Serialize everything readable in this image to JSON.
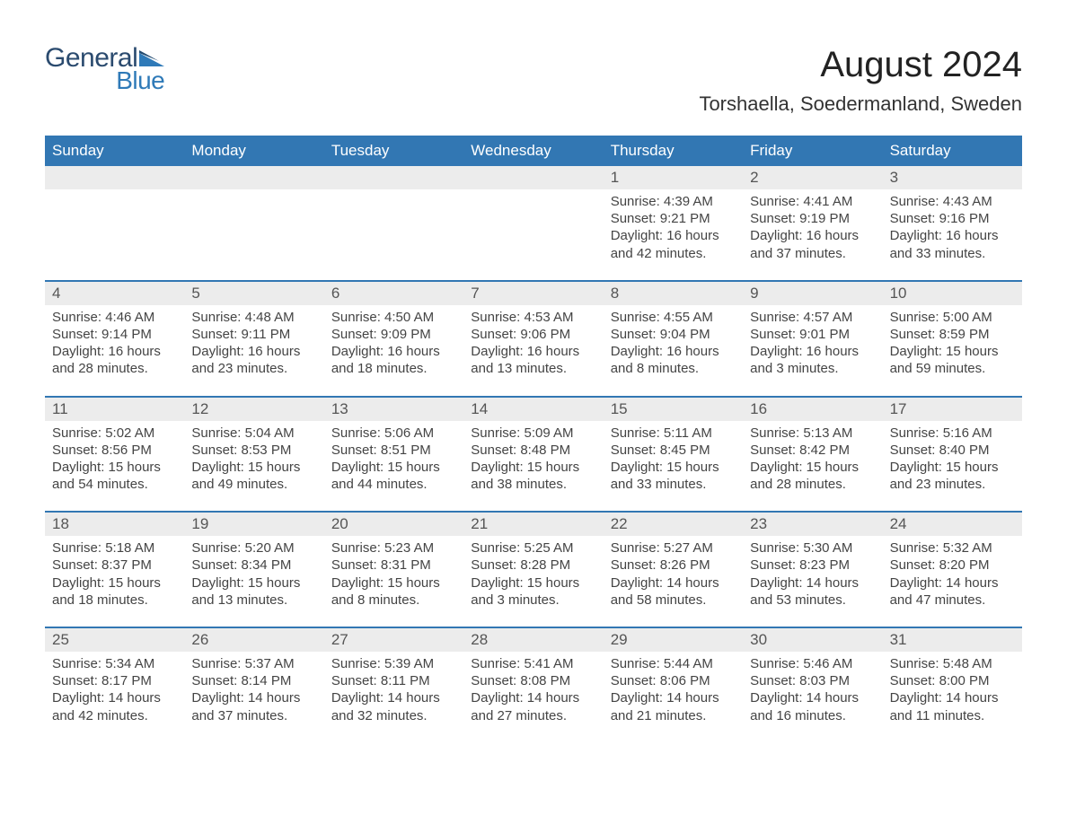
{
  "logo": {
    "text1": "General",
    "text2": "Blue"
  },
  "title": "August 2024",
  "subtitle": "Torshaella, Soedermanland, Sweden",
  "colors": {
    "header_blue": "#3277b3",
    "logo_dark": "#2b4b6f",
    "logo_blue": "#2f7ab8",
    "daynum_bg": "#ececec",
    "background": "#ffffff"
  },
  "weekdays": [
    "Sunday",
    "Monday",
    "Tuesday",
    "Wednesday",
    "Thursday",
    "Friday",
    "Saturday"
  ],
  "weeks": [
    [
      null,
      null,
      null,
      null,
      {
        "n": "1",
        "sr": "Sunrise: 4:39 AM",
        "ss": "Sunset: 9:21 PM",
        "d1": "Daylight: 16 hours",
        "d2": "and 42 minutes."
      },
      {
        "n": "2",
        "sr": "Sunrise: 4:41 AM",
        "ss": "Sunset: 9:19 PM",
        "d1": "Daylight: 16 hours",
        "d2": "and 37 minutes."
      },
      {
        "n": "3",
        "sr": "Sunrise: 4:43 AM",
        "ss": "Sunset: 9:16 PM",
        "d1": "Daylight: 16 hours",
        "d2": "and 33 minutes."
      }
    ],
    [
      {
        "n": "4",
        "sr": "Sunrise: 4:46 AM",
        "ss": "Sunset: 9:14 PM",
        "d1": "Daylight: 16 hours",
        "d2": "and 28 minutes."
      },
      {
        "n": "5",
        "sr": "Sunrise: 4:48 AM",
        "ss": "Sunset: 9:11 PM",
        "d1": "Daylight: 16 hours",
        "d2": "and 23 minutes."
      },
      {
        "n": "6",
        "sr": "Sunrise: 4:50 AM",
        "ss": "Sunset: 9:09 PM",
        "d1": "Daylight: 16 hours",
        "d2": "and 18 minutes."
      },
      {
        "n": "7",
        "sr": "Sunrise: 4:53 AM",
        "ss": "Sunset: 9:06 PM",
        "d1": "Daylight: 16 hours",
        "d2": "and 13 minutes."
      },
      {
        "n": "8",
        "sr": "Sunrise: 4:55 AM",
        "ss": "Sunset: 9:04 PM",
        "d1": "Daylight: 16 hours",
        "d2": "and 8 minutes."
      },
      {
        "n": "9",
        "sr": "Sunrise: 4:57 AM",
        "ss": "Sunset: 9:01 PM",
        "d1": "Daylight: 16 hours",
        "d2": "and 3 minutes."
      },
      {
        "n": "10",
        "sr": "Sunrise: 5:00 AM",
        "ss": "Sunset: 8:59 PM",
        "d1": "Daylight: 15 hours",
        "d2": "and 59 minutes."
      }
    ],
    [
      {
        "n": "11",
        "sr": "Sunrise: 5:02 AM",
        "ss": "Sunset: 8:56 PM",
        "d1": "Daylight: 15 hours",
        "d2": "and 54 minutes."
      },
      {
        "n": "12",
        "sr": "Sunrise: 5:04 AM",
        "ss": "Sunset: 8:53 PM",
        "d1": "Daylight: 15 hours",
        "d2": "and 49 minutes."
      },
      {
        "n": "13",
        "sr": "Sunrise: 5:06 AM",
        "ss": "Sunset: 8:51 PM",
        "d1": "Daylight: 15 hours",
        "d2": "and 44 minutes."
      },
      {
        "n": "14",
        "sr": "Sunrise: 5:09 AM",
        "ss": "Sunset: 8:48 PM",
        "d1": "Daylight: 15 hours",
        "d2": "and 38 minutes."
      },
      {
        "n": "15",
        "sr": "Sunrise: 5:11 AM",
        "ss": "Sunset: 8:45 PM",
        "d1": "Daylight: 15 hours",
        "d2": "and 33 minutes."
      },
      {
        "n": "16",
        "sr": "Sunrise: 5:13 AM",
        "ss": "Sunset: 8:42 PM",
        "d1": "Daylight: 15 hours",
        "d2": "and 28 minutes."
      },
      {
        "n": "17",
        "sr": "Sunrise: 5:16 AM",
        "ss": "Sunset: 8:40 PM",
        "d1": "Daylight: 15 hours",
        "d2": "and 23 minutes."
      }
    ],
    [
      {
        "n": "18",
        "sr": "Sunrise: 5:18 AM",
        "ss": "Sunset: 8:37 PM",
        "d1": "Daylight: 15 hours",
        "d2": "and 18 minutes."
      },
      {
        "n": "19",
        "sr": "Sunrise: 5:20 AM",
        "ss": "Sunset: 8:34 PM",
        "d1": "Daylight: 15 hours",
        "d2": "and 13 minutes."
      },
      {
        "n": "20",
        "sr": "Sunrise: 5:23 AM",
        "ss": "Sunset: 8:31 PM",
        "d1": "Daylight: 15 hours",
        "d2": "and 8 minutes."
      },
      {
        "n": "21",
        "sr": "Sunrise: 5:25 AM",
        "ss": "Sunset: 8:28 PM",
        "d1": "Daylight: 15 hours",
        "d2": "and 3 minutes."
      },
      {
        "n": "22",
        "sr": "Sunrise: 5:27 AM",
        "ss": "Sunset: 8:26 PM",
        "d1": "Daylight: 14 hours",
        "d2": "and 58 minutes."
      },
      {
        "n": "23",
        "sr": "Sunrise: 5:30 AM",
        "ss": "Sunset: 8:23 PM",
        "d1": "Daylight: 14 hours",
        "d2": "and 53 minutes."
      },
      {
        "n": "24",
        "sr": "Sunrise: 5:32 AM",
        "ss": "Sunset: 8:20 PM",
        "d1": "Daylight: 14 hours",
        "d2": "and 47 minutes."
      }
    ],
    [
      {
        "n": "25",
        "sr": "Sunrise: 5:34 AM",
        "ss": "Sunset: 8:17 PM",
        "d1": "Daylight: 14 hours",
        "d2": "and 42 minutes."
      },
      {
        "n": "26",
        "sr": "Sunrise: 5:37 AM",
        "ss": "Sunset: 8:14 PM",
        "d1": "Daylight: 14 hours",
        "d2": "and 37 minutes."
      },
      {
        "n": "27",
        "sr": "Sunrise: 5:39 AM",
        "ss": "Sunset: 8:11 PM",
        "d1": "Daylight: 14 hours",
        "d2": "and 32 minutes."
      },
      {
        "n": "28",
        "sr": "Sunrise: 5:41 AM",
        "ss": "Sunset: 8:08 PM",
        "d1": "Daylight: 14 hours",
        "d2": "and 27 minutes."
      },
      {
        "n": "29",
        "sr": "Sunrise: 5:44 AM",
        "ss": "Sunset: 8:06 PM",
        "d1": "Daylight: 14 hours",
        "d2": "and 21 minutes."
      },
      {
        "n": "30",
        "sr": "Sunrise: 5:46 AM",
        "ss": "Sunset: 8:03 PM",
        "d1": "Daylight: 14 hours",
        "d2": "and 16 minutes."
      },
      {
        "n": "31",
        "sr": "Sunrise: 5:48 AM",
        "ss": "Sunset: 8:00 PM",
        "d1": "Daylight: 14 hours",
        "d2": "and 11 minutes."
      }
    ]
  ]
}
